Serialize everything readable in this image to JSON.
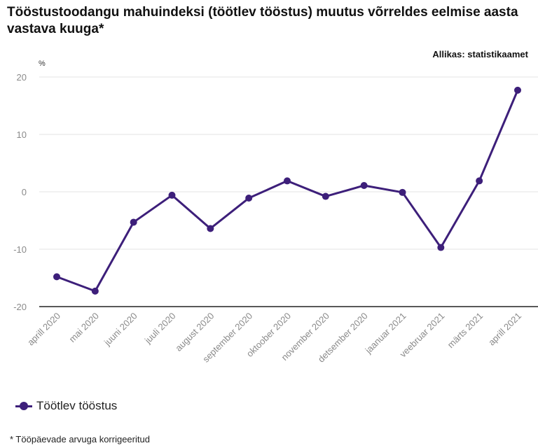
{
  "header": {
    "title": "Tööstustoodangu mahuindeksi (töötlev tööstus) muutus võrreldes eelmise aasta vastava kuuga*",
    "source": "Allikas: statistikaamet",
    "unit": "%"
  },
  "footnote": "* Tööpäevade arvuga korrigeeritud",
  "colors": {
    "series": "#3d1f7a",
    "grid": "#e3e3e3",
    "axis": "#222222",
    "tick": "#8a8a8a"
  },
  "chart_data": {
    "type": "line",
    "categories": [
      "aprill 2020",
      "mai 2020",
      "juuni 2020",
      "juuli 2020",
      "august 2020",
      "september 2020",
      "oktoober 2020",
      "november 2020",
      "detsember 2020",
      "jaanuar 2021",
      "veebruar 2021",
      "märts 2021",
      "aprill 2021"
    ],
    "series": [
      {
        "name": "Töötlev tööstus",
        "values": [
          -14.8,
          -17.3,
          -5.3,
          -0.6,
          -6.4,
          -1.1,
          1.9,
          -0.8,
          1.1,
          -0.1,
          -9.7,
          1.9,
          17.7
        ]
      }
    ],
    "ylabel": "%",
    "ylim": [
      -20,
      20
    ],
    "yticks": [
      20,
      10,
      0,
      -10,
      -20
    ],
    "grid": true,
    "legend": "bottom-left"
  }
}
